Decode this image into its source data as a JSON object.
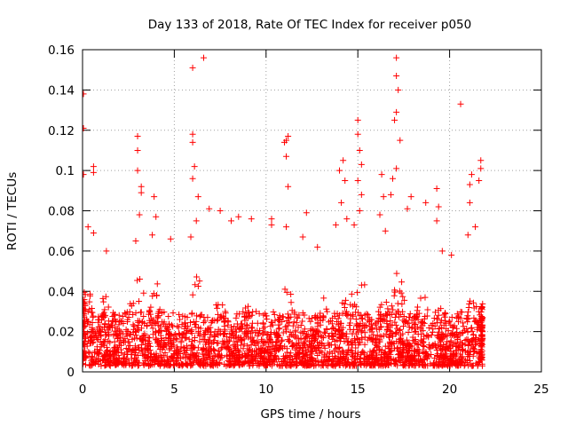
{
  "chart_data": {
    "type": "scatter",
    "title": "Day 133 of 2018, Rate Of TEC Index for receiver p050",
    "xlabel": "GPS time / hours",
    "ylabel": "ROTI / TECUs",
    "xlim": [
      0,
      25
    ],
    "ylim": [
      0,
      0.16
    ],
    "xticks": [
      0,
      5,
      10,
      15,
      20,
      25
    ],
    "yticks": [
      0,
      0.02,
      0.04,
      0.06,
      0.08,
      0.1,
      0.12,
      0.14,
      0.16
    ],
    "xtick_labels": [
      "0",
      "5",
      "10",
      "15",
      "20",
      "25"
    ],
    "ytick_labels": [
      "0",
      "0.02",
      "0.04",
      "0.06",
      "0.08",
      "0.1",
      "0.12",
      "0.14",
      "0.16"
    ],
    "grid": true,
    "marker": "+",
    "color": "#ff0000",
    "series_name": "ROTI",
    "x_data_range": [
      0,
      21.8
    ],
    "dense_band": {
      "y_min": 0.003,
      "y_max": 0.03
    },
    "notable_points": [
      {
        "x": 0.05,
        "y": 0.138
      },
      {
        "x": 0.05,
        "y": 0.121
      },
      {
        "x": 0.05,
        "y": 0.098
      },
      {
        "x": 0.6,
        "y": 0.102
      },
      {
        "x": 0.6,
        "y": 0.099
      },
      {
        "x": 0.3,
        "y": 0.072
      },
      {
        "x": 0.6,
        "y": 0.069
      },
      {
        "x": 1.3,
        "y": 0.06
      },
      {
        "x": 3.0,
        "y": 0.117
      },
      {
        "x": 3.0,
        "y": 0.11
      },
      {
        "x": 3.0,
        "y": 0.1
      },
      {
        "x": 3.2,
        "y": 0.092
      },
      {
        "x": 3.2,
        "y": 0.089
      },
      {
        "x": 3.1,
        "y": 0.078
      },
      {
        "x": 2.9,
        "y": 0.065
      },
      {
        "x": 3.9,
        "y": 0.087
      },
      {
        "x": 4.0,
        "y": 0.077
      },
      {
        "x": 3.8,
        "y": 0.068
      },
      {
        "x": 4.8,
        "y": 0.066
      },
      {
        "x": 6.0,
        "y": 0.151
      },
      {
        "x": 6.6,
        "y": 0.156
      },
      {
        "x": 6.0,
        "y": 0.118
      },
      {
        "x": 6.0,
        "y": 0.114
      },
      {
        "x": 6.1,
        "y": 0.102
      },
      {
        "x": 6.0,
        "y": 0.096
      },
      {
        "x": 6.3,
        "y": 0.087
      },
      {
        "x": 6.2,
        "y": 0.075
      },
      {
        "x": 5.9,
        "y": 0.067
      },
      {
        "x": 6.9,
        "y": 0.081
      },
      {
        "x": 7.5,
        "y": 0.08
      },
      {
        "x": 8.1,
        "y": 0.075
      },
      {
        "x": 8.5,
        "y": 0.077
      },
      {
        "x": 9.2,
        "y": 0.076
      },
      {
        "x": 10.3,
        "y": 0.076
      },
      {
        "x": 10.3,
        "y": 0.073
      },
      {
        "x": 11.0,
        "y": 0.114
      },
      {
        "x": 11.1,
        "y": 0.115
      },
      {
        "x": 11.2,
        "y": 0.117
      },
      {
        "x": 11.1,
        "y": 0.107
      },
      {
        "x": 11.2,
        "y": 0.092
      },
      {
        "x": 11.1,
        "y": 0.072
      },
      {
        "x": 12.2,
        "y": 0.079
      },
      {
        "x": 12.0,
        "y": 0.067
      },
      {
        "x": 12.8,
        "y": 0.062
      },
      {
        "x": 14.0,
        "y": 0.1
      },
      {
        "x": 14.2,
        "y": 0.105
      },
      {
        "x": 14.3,
        "y": 0.095
      },
      {
        "x": 14.1,
        "y": 0.084
      },
      {
        "x": 14.4,
        "y": 0.076
      },
      {
        "x": 13.8,
        "y": 0.073
      },
      {
        "x": 15.0,
        "y": 0.125
      },
      {
        "x": 15.0,
        "y": 0.118
      },
      {
        "x": 15.1,
        "y": 0.11
      },
      {
        "x": 15.2,
        "y": 0.103
      },
      {
        "x": 15.0,
        "y": 0.095
      },
      {
        "x": 15.2,
        "y": 0.088
      },
      {
        "x": 15.1,
        "y": 0.08
      },
      {
        "x": 14.8,
        "y": 0.073
      },
      {
        "x": 16.3,
        "y": 0.098
      },
      {
        "x": 16.4,
        "y": 0.087
      },
      {
        "x": 16.2,
        "y": 0.078
      },
      {
        "x": 16.5,
        "y": 0.07
      },
      {
        "x": 17.1,
        "y": 0.156
      },
      {
        "x": 17.1,
        "y": 0.147
      },
      {
        "x": 17.2,
        "y": 0.14
      },
      {
        "x": 17.1,
        "y": 0.129
      },
      {
        "x": 17.0,
        "y": 0.125
      },
      {
        "x": 17.3,
        "y": 0.115
      },
      {
        "x": 17.1,
        "y": 0.101
      },
      {
        "x": 16.9,
        "y": 0.096
      },
      {
        "x": 16.8,
        "y": 0.088
      },
      {
        "x": 17.9,
        "y": 0.087
      },
      {
        "x": 17.7,
        "y": 0.081
      },
      {
        "x": 18.7,
        "y": 0.084
      },
      {
        "x": 19.3,
        "y": 0.091
      },
      {
        "x": 19.4,
        "y": 0.082
      },
      {
        "x": 19.3,
        "y": 0.075
      },
      {
        "x": 20.6,
        "y": 0.133
      },
      {
        "x": 21.2,
        "y": 0.098
      },
      {
        "x": 21.1,
        "y": 0.093
      },
      {
        "x": 21.1,
        "y": 0.084
      },
      {
        "x": 21.7,
        "y": 0.105
      },
      {
        "x": 21.7,
        "y": 0.101
      },
      {
        "x": 21.6,
        "y": 0.095
      },
      {
        "x": 21.0,
        "y": 0.068
      },
      {
        "x": 21.4,
        "y": 0.072
      },
      {
        "x": 20.1,
        "y": 0.058
      },
      {
        "x": 19.6,
        "y": 0.06
      }
    ]
  }
}
